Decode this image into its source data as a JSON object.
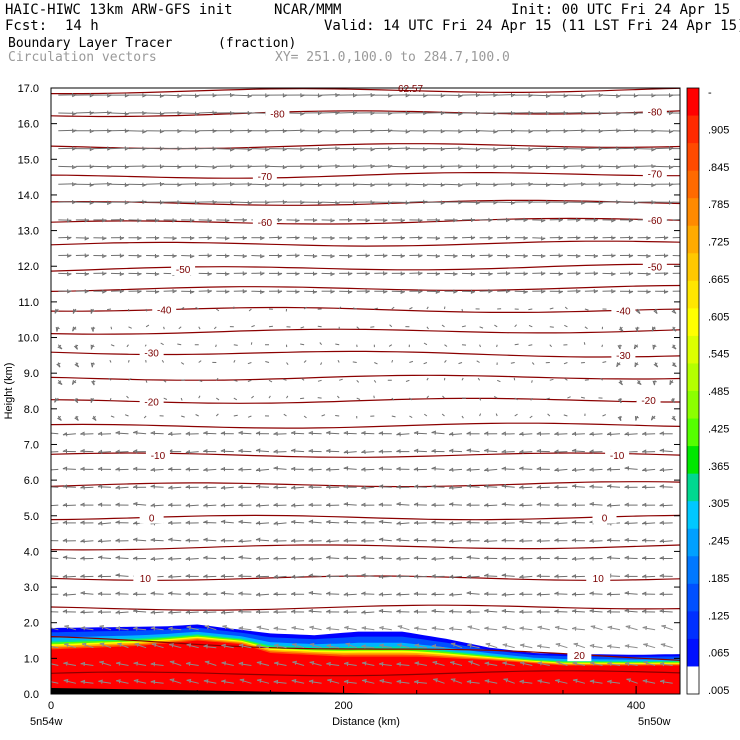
{
  "header": {
    "model": "HAIC-HIWC 13km ARW-GFS init",
    "org": "NCAR/MMM",
    "init": "Init: 00 UTC Fri 24 Apr 15",
    "fcst_label": "Fcst:",
    "fcst_value": "14 h",
    "valid": "Valid: 14 UTC Fri 24 Apr 15 (11 LST Fri 24 Apr 15)",
    "field_name": "Boundary Layer Tracer",
    "field_units": "(fraction)",
    "vector_label": "Circulation vectors",
    "xy_label": "XY= 251.0,100.0 to 284.7,100.0",
    "top_contour_label": "62.57"
  },
  "chart_data": {
    "type": "cross-section",
    "ylabel": "Height (km)",
    "xlabel": "Distance (km)",
    "ylim": [
      0.0,
      17.0
    ],
    "xlim": [
      0,
      430
    ],
    "y_ticks": [
      "0.0",
      "1.0",
      "2.0",
      "3.0",
      "4.0",
      "5.0",
      "6.0",
      "7.0",
      "8.0",
      "9.0",
      "10.0",
      "11.0",
      "12.0",
      "13.0",
      "14.0",
      "15.0",
      "16.0",
      "17.0"
    ],
    "x_ticks": [
      0,
      200,
      400
    ],
    "x_tick_labels": [
      "0",
      "200",
      "400"
    ],
    "left_location": "5n54w",
    "right_location": "5n50w",
    "temperature_contours": [
      {
        "label": "-80",
        "height_left": 16.25,
        "height_right": 16.35,
        "label_positions": [
          0.36,
          0.96
        ]
      },
      {
        "label": "-70",
        "height_left": 14.5,
        "height_right": 14.6,
        "label_positions": [
          0.34,
          0.96
        ]
      },
      {
        "label": "-60",
        "height_left": 13.2,
        "height_right": 13.3,
        "label_positions": [
          0.34,
          0.96
        ]
      },
      {
        "label": "-50",
        "height_left": 11.9,
        "height_right": 12.0,
        "label_positions": [
          0.21,
          0.96
        ]
      },
      {
        "label": "-40",
        "height_left": 10.8,
        "height_right": 10.75,
        "label_positions": [
          0.18,
          0.91
        ]
      },
      {
        "label": "-30",
        "height_left": 9.6,
        "height_right": 9.5,
        "label_positions": [
          0.16,
          0.91
        ]
      },
      {
        "label": "-20",
        "height_left": 8.2,
        "height_right": 8.25,
        "label_positions": [
          0.16,
          0.95
        ]
      },
      {
        "label": "-10",
        "height_left": 6.7,
        "height_right": 6.7,
        "label_positions": [
          0.17,
          0.9
        ]
      },
      {
        "label": "0",
        "height_left": 4.95,
        "height_right": 4.95,
        "label_positions": [
          0.16,
          0.88
        ]
      },
      {
        "label": "10",
        "height_left": 3.25,
        "height_right": 3.25,
        "label_positions": [
          0.15,
          0.87
        ]
      },
      {
        "label": "20",
        "height_left": 1.55,
        "height_right": 1.0,
        "label_positions": [
          0.84
        ]
      }
    ],
    "extra_isotherms_km": [
      16.9,
      15.35,
      13.75,
      12.6,
      11.35,
      10.15,
      8.85,
      7.5,
      5.85,
      4.1,
      2.4,
      0.55
    ],
    "tracer": {
      "top_km": [
        [
          0,
          1.85
        ],
        [
          80,
          1.9
        ],
        [
          100,
          1.95
        ],
        [
          120,
          1.85
        ],
        [
          150,
          1.7
        ],
        [
          180,
          1.65
        ],
        [
          210,
          1.75
        ],
        [
          240,
          1.75
        ],
        [
          270,
          1.55
        ],
        [
          300,
          1.3
        ],
        [
          330,
          1.15
        ],
        [
          360,
          1.12
        ],
        [
          400,
          1.1
        ],
        [
          430,
          1.12
        ]
      ],
      "red_top_km": [
        [
          0,
          1.25
        ],
        [
          60,
          1.35
        ],
        [
          100,
          1.5
        ],
        [
          130,
          1.4
        ],
        [
          150,
          1.15
        ],
        [
          200,
          1.05
        ],
        [
          250,
          1.05
        ],
        [
          300,
          0.95
        ],
        [
          350,
          0.8
        ],
        [
          430,
          0.8
        ]
      ],
      "low_sliver_end_km": 245
    },
    "wind_regimes": [
      {
        "from_km": 13.5,
        "to_km": 17.0,
        "direction": "east",
        "strength": "strong"
      },
      {
        "from_km": 11.0,
        "to_km": 13.5,
        "direction": "east",
        "strength": "moderate"
      },
      {
        "from_km": 7.5,
        "to_km": 11.0,
        "direction": "variable",
        "strength": "weak"
      },
      {
        "from_km": 2.0,
        "to_km": 7.5,
        "direction": "west",
        "strength": "moderate"
      },
      {
        "from_km": 0.0,
        "to_km": 2.0,
        "direction": "west-southwest",
        "strength": "moderate"
      }
    ],
    "colorbar": {
      "labels": [
        "-",
        ".905",
        ".845",
        ".785",
        ".725",
        ".665",
        ".605",
        ".545",
        ".485",
        ".425",
        ".365",
        ".305",
        ".245",
        ".185",
        ".125",
        ".065",
        ".005"
      ],
      "colors": [
        "#ff0000",
        "#ff2a00",
        "#ff4a00",
        "#ff6a00",
        "#ff8a00",
        "#ffaa00",
        "#ffc800",
        "#ffe600",
        "#ffff00",
        "#dcff00",
        "#b4ff00",
        "#8cff00",
        "#55ff00",
        "#00e800",
        "#00d890",
        "#00c8ff",
        "#00a0ff",
        "#0078ff",
        "#0050ff",
        "#0030ff",
        "#0010ff",
        "#ffffff"
      ]
    }
  }
}
